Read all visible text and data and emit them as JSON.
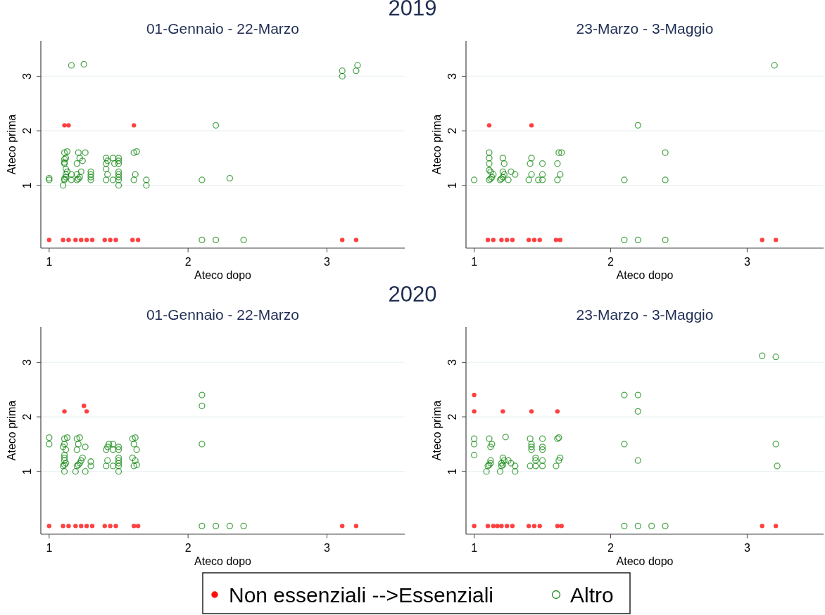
{
  "chart_data": [
    {
      "type": "scatter",
      "title": "01-Gennaio - 22-Marzo",
      "xlabel": "Ateco dopo",
      "ylabel": "Ateco prima",
      "annotations": [
        "2019"
      ],
      "xlim": [
        0.94,
        3.56
      ],
      "ylim": [
        -0.15,
        3.65
      ],
      "xticks": [
        1,
        2,
        3
      ],
      "yticks": [
        1,
        2,
        3
      ],
      "grid": "y",
      "legend": "bottom",
      "marker": "circle",
      "series": [
        {
          "name": "Non essenziali -->Essenziali",
          "color": "#ff0000",
          "x": [
            1.0,
            1.1,
            1.14,
            1.19,
            1.23,
            1.27,
            1.31,
            1.4,
            1.44,
            1.48,
            1.6,
            1.64,
            3.11,
            3.21,
            1.11,
            1.14,
            1.61
          ],
          "values": [
            0,
            0,
            0,
            0,
            0,
            0,
            0,
            0,
            0,
            0,
            0,
            0,
            0,
            0,
            2.1,
            2.1,
            2.1
          ]
        },
        {
          "name": "Altro",
          "color": "#008000",
          "x": [
            1.0,
            1.0,
            1.1,
            1.11,
            1.11,
            1.12,
            1.12,
            1.13,
            1.12,
            1.11,
            1.11,
            1.12,
            1.11,
            1.11,
            1.13,
            1.16,
            1.16,
            1.16,
            1.2,
            1.21,
            1.22,
            1.2,
            1.23,
            1.2,
            1.24,
            1.22,
            1.21,
            1.25,
            1.26,
            1.3,
            1.3,
            1.3,
            1.3,
            1.41,
            1.42,
            1.41,
            1.41,
            1.42,
            1.41,
            1.46,
            1.47,
            1.46,
            1.5,
            1.5,
            1.5,
            1.5,
            1.5,
            1.5,
            1.5,
            1.5,
            1.61,
            1.62,
            1.61,
            1.63,
            1.7,
            1.7,
            2.1,
            2.1,
            2.2,
            2.2,
            2.3,
            2.4,
            3.11,
            3.11,
            3.21,
            3.22
          ],
          "values": [
            1.1,
            1.13,
            1.0,
            1.1,
            1.12,
            1.15,
            1.2,
            1.25,
            1.3,
            1.4,
            1.42,
            1.5,
            1.48,
            1.6,
            1.62,
            3.2,
            1.2,
            1.1,
            1.1,
            1.12,
            1.15,
            1.2,
            1.25,
            1.4,
            1.45,
            1.5,
            1.6,
            3.22,
            1.6,
            1.1,
            1.15,
            1.2,
            1.25,
            1.1,
            1.2,
            1.3,
            1.4,
            1.45,
            1.5,
            1.1,
            1.4,
            1.5,
            1.0,
            1.1,
            1.15,
            1.2,
            1.25,
            1.4,
            1.45,
            1.5,
            1.1,
            1.2,
            1.6,
            1.62,
            1.0,
            1.1,
            1.1,
            0,
            2.1,
            0,
            1.13,
            0,
            3.0,
            3.1,
            3.1,
            3.2
          ]
        }
      ]
    },
    {
      "type": "scatter",
      "title": "23-Marzo - 3-Maggio",
      "xlabel": "Ateco dopo",
      "ylabel": "Ateco prima",
      "xlim": [
        0.94,
        3.56
      ],
      "ylim": [
        -0.15,
        3.65
      ],
      "xticks": [
        1,
        2,
        3
      ],
      "yticks": [
        1,
        2,
        3
      ],
      "grid": "y",
      "marker": "circle",
      "series": [
        {
          "color": "#ff0000",
          "x": [
            1.1,
            1.14,
            1.2,
            1.24,
            1.28,
            1.4,
            1.44,
            1.48,
            1.6,
            1.63,
            3.11,
            3.21,
            1.11,
            1.42
          ],
          "values": [
            0,
            0,
            0,
            0,
            0,
            0,
            0,
            0,
            0,
            0,
            0,
            0,
            2.1,
            2.1
          ]
        },
        {
          "color": "#008000",
          "x": [
            1.0,
            1.11,
            1.12,
            1.13,
            1.14,
            1.12,
            1.11,
            1.11,
            1.11,
            1.11,
            1.19,
            1.2,
            1.21,
            1.22,
            1.21,
            1.22,
            1.21,
            1.25,
            1.27,
            1.3,
            1.4,
            1.42,
            1.41,
            1.42,
            1.47,
            1.5,
            1.5,
            1.5,
            1.61,
            1.63,
            1.61,
            1.62,
            1.64,
            2.1,
            2.1,
            2.2,
            2.2,
            2.4,
            2.4,
            2.4,
            3.2
          ],
          "values": [
            1.1,
            1.1,
            1.12,
            1.15,
            1.2,
            1.25,
            1.28,
            1.4,
            1.5,
            1.6,
            1.1,
            1.12,
            1.15,
            1.2,
            1.25,
            1.4,
            1.5,
            1.1,
            1.25,
            1.2,
            1.1,
            1.2,
            1.4,
            1.5,
            1.1,
            1.1,
            1.2,
            1.4,
            1.1,
            1.2,
            1.4,
            1.6,
            1.6,
            1.1,
            0,
            2.1,
            0,
            1.6,
            1.1,
            0,
            3.2
          ]
        }
      ]
    },
    {
      "type": "scatter",
      "title": "01-Gennaio - 22-Marzo",
      "xlabel": "Ateco dopo",
      "ylabel": "Ateco prima",
      "annotations": [
        "2020"
      ],
      "xlim": [
        0.94,
        3.56
      ],
      "ylim": [
        -0.15,
        3.65
      ],
      "xticks": [
        1,
        2,
        3
      ],
      "yticks": [
        1,
        2,
        3
      ],
      "grid": "y",
      "marker": "circle",
      "series": [
        {
          "color": "#ff0000",
          "x": [
            1.0,
            1.1,
            1.14,
            1.19,
            1.23,
            1.27,
            1.31,
            1.4,
            1.44,
            1.48,
            1.61,
            1.64,
            3.11,
            3.21,
            1.11,
            1.25,
            1.27
          ],
          "values": [
            0,
            0,
            0,
            0,
            0,
            0,
            0,
            0,
            0,
            0,
            0,
            0,
            0,
            0,
            2.1,
            2.2,
            2.1
          ]
        },
        {
          "color": "#008000",
          "x": [
            1.0,
            1.0,
            1.11,
            1.1,
            1.11,
            1.12,
            1.11,
            1.11,
            1.11,
            1.12,
            1.1,
            1.11,
            1.11,
            1.13,
            1.19,
            1.2,
            1.21,
            1.22,
            1.23,
            1.24,
            1.2,
            1.26,
            1.21,
            1.2,
            1.22,
            1.26,
            1.3,
            1.3,
            1.41,
            1.42,
            1.41,
            1.42,
            1.43,
            1.46,
            1.46,
            1.46,
            1.5,
            1.5,
            1.5,
            1.5,
            1.5,
            1.5,
            1.5,
            1.61,
            1.63,
            1.62,
            1.6,
            1.63,
            1.61,
            1.6,
            1.62,
            2.1,
            2.1,
            2.1,
            2.1,
            2.2,
            2.3,
            2.4
          ],
          "values": [
            1.5,
            1.62,
            1.0,
            1.1,
            1.12,
            1.15,
            1.2,
            1.25,
            1.3,
            1.4,
            1.45,
            1.5,
            1.6,
            1.62,
            1.0,
            1.1,
            1.12,
            1.15,
            1.2,
            1.25,
            1.4,
            1.45,
            1.5,
            1.6,
            1.62,
            1.0,
            1.1,
            1.18,
            1.1,
            1.2,
            1.4,
            1.45,
            1.5,
            1.1,
            1.4,
            1.5,
            1.0,
            1.1,
            1.15,
            1.2,
            1.25,
            1.4,
            1.45,
            1.1,
            1.12,
            1.2,
            1.25,
            1.4,
            1.5,
            1.6,
            1.62,
            2.4,
            2.2,
            1.5,
            0,
            0,
            0,
            0
          ]
        }
      ]
    },
    {
      "type": "scatter",
      "title": "23-Marzo - 3-Maggio",
      "xlabel": "Ateco dopo",
      "ylabel": "Ateco prima",
      "xlim": [
        0.94,
        3.56
      ],
      "ylim": [
        -0.15,
        3.65
      ],
      "xticks": [
        1,
        2,
        3
      ],
      "yticks": [
        1,
        2,
        3
      ],
      "grid": "y",
      "marker": "circle",
      "series": [
        {
          "color": "#ff0000",
          "x": [
            1.0,
            1.1,
            1.14,
            1.17,
            1.2,
            1.24,
            1.28,
            1.4,
            1.44,
            1.48,
            1.61,
            1.64,
            3.11,
            3.21,
            1.0,
            1.0,
            1.21,
            1.42,
            1.61
          ],
          "values": [
            0,
            0,
            0,
            0,
            0,
            0,
            0,
            0,
            0,
            0,
            0,
            0,
            0,
            0,
            2.4,
            2.1,
            2.1,
            2.1,
            2.1
          ]
        },
        {
          "color": "#008000",
          "x": [
            1.0,
            1.0,
            1.0,
            1.09,
            1.1,
            1.11,
            1.12,
            1.12,
            1.12,
            1.13,
            1.11,
            1.19,
            1.2,
            1.21,
            1.2,
            1.22,
            1.21,
            1.23,
            1.3,
            1.3,
            1.27,
            1.25,
            1.41,
            1.42,
            1.42,
            1.42,
            1.41,
            1.45,
            1.45,
            1.45,
            1.5,
            1.5,
            1.5,
            1.5,
            1.5,
            1.6,
            1.62,
            1.63,
            1.61,
            1.62,
            2.1,
            2.1,
            2.1,
            2.2,
            2.2,
            2.2,
            2.2,
            2.3,
            2.4,
            3.11,
            3.21,
            3.21,
            3.22
          ],
          "values": [
            1.3,
            1.5,
            1.6,
            1.0,
            1.1,
            1.12,
            1.15,
            1.2,
            1.45,
            1.5,
            1.6,
            1.0,
            1.1,
            1.12,
            1.15,
            1.2,
            1.25,
            1.63,
            1.0,
            1.1,
            1.15,
            1.2,
            1.1,
            1.4,
            1.45,
            1.5,
            1.6,
            1.1,
            1.2,
            1.25,
            1.1,
            1.2,
            1.4,
            1.45,
            1.6,
            1.1,
            1.2,
            1.25,
            1.6,
            1.62,
            2.4,
            1.5,
            0,
            2.4,
            2.1,
            1.2,
            0,
            0,
            0,
            3.12,
            3.1,
            1.5,
            1.1
          ]
        }
      ]
    }
  ]
}
